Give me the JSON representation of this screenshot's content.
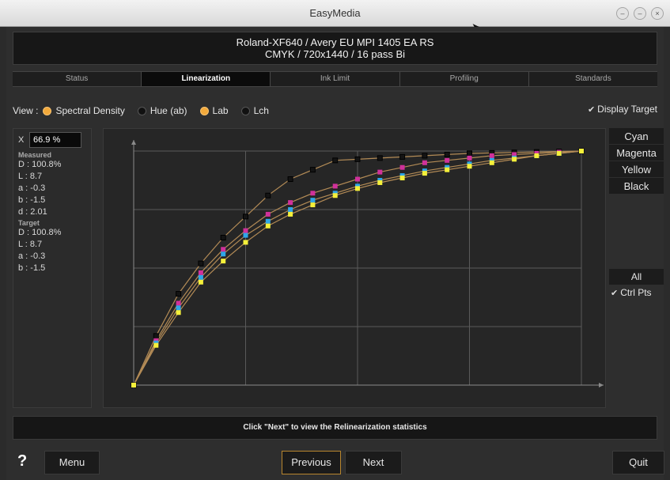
{
  "window": {
    "title": "EasyMedia",
    "controls": [
      "–",
      "–",
      "×"
    ]
  },
  "header": {
    "line1": "Roland-XF640 / Avery EU MPI 1405 EA RS",
    "line2": "CMYK / 720x1440 / 16 pass Bi"
  },
  "tabs": [
    {
      "label": "Status",
      "active": false
    },
    {
      "label": "Linearization",
      "active": true
    },
    {
      "label": "Ink Limit",
      "active": false
    },
    {
      "label": "Profiling",
      "active": false
    },
    {
      "label": "Standards",
      "active": false
    }
  ],
  "view": {
    "label": "View :",
    "options": [
      {
        "label": "Spectral Density",
        "selected": true
      },
      {
        "label": "Hue (ab)",
        "selected": false
      },
      {
        "label": "Lab",
        "selected": true
      },
      {
        "label": "Lch",
        "selected": false
      }
    ],
    "display_target": {
      "label": "Display Target",
      "checked": true
    }
  },
  "left_panel": {
    "x_label": "X",
    "x_value": "66.9 %",
    "measured_header": "Measured",
    "measured": [
      "D : 100.8%",
      "L : 8.7",
      "a : -0.3",
      "b : -1.5",
      "d : 2.01"
    ],
    "target_header": "Target",
    "target": [
      "D : 100.8%",
      "L : 8.7",
      "a : -0.3",
      "b : -1.5"
    ]
  },
  "right_panel": {
    "channels": [
      "Cyan",
      "Magenta",
      "Yellow",
      "Black"
    ],
    "all_label": "All",
    "ctrl_pts": {
      "label": "Ctrl Pts",
      "checked": true
    }
  },
  "status_message": "Click \"Next\" to view the Relinearization statistics",
  "bottom": {
    "help": "?",
    "menu": "Menu",
    "previous": "Previous",
    "next": "Next",
    "quit": "Quit"
  },
  "colors": {
    "black": "#141414",
    "magenta": "#d0319b",
    "cyan": "#2fa6e8",
    "yellow": "#f5f03a",
    "curve_line": "#b38b56",
    "accent_radio": "#f2a93b"
  },
  "chart_data": {
    "type": "line",
    "title": "",
    "xlabel": "",
    "ylabel": "",
    "xlim": [
      0,
      100
    ],
    "ylim": [
      0,
      100
    ],
    "grid": true,
    "x": [
      0,
      5,
      10,
      15,
      20,
      25,
      30,
      35,
      40,
      45,
      50,
      55,
      60,
      65,
      70,
      75,
      80,
      85,
      90,
      95,
      100
    ],
    "series": [
      {
        "name": "Black",
        "color": "#141414",
        "values": [
          0,
          21,
          39,
          52,
          63,
          72,
          81,
          88,
          92,
          96,
          96.5,
          97,
          97.5,
          98,
          98.5,
          99,
          99.2,
          99.4,
          99.6,
          99.8,
          100
        ]
      },
      {
        "name": "Magenta",
        "color": "#d0319b",
        "values": [
          0,
          19,
          35,
          48,
          58,
          66,
          73,
          78,
          82,
          85,
          88,
          91,
          93,
          95,
          96,
          97,
          98,
          98.5,
          99,
          99.5,
          100
        ]
      },
      {
        "name": "Cyan",
        "color": "#2fa6e8",
        "values": [
          0,
          18,
          33,
          46,
          56,
          64,
          70,
          75,
          79,
          82,
          85,
          87.5,
          89.5,
          91.5,
          93,
          94.5,
          96,
          97,
          98,
          99,
          100
        ]
      },
      {
        "name": "Yellow",
        "color": "#f5f03a",
        "values": [
          0,
          17,
          31,
          44,
          53,
          61,
          68,
          73,
          77,
          81,
          84,
          86.5,
          88.5,
          90.5,
          92,
          93.5,
          95,
          96.5,
          98,
          99,
          100
        ]
      }
    ]
  }
}
